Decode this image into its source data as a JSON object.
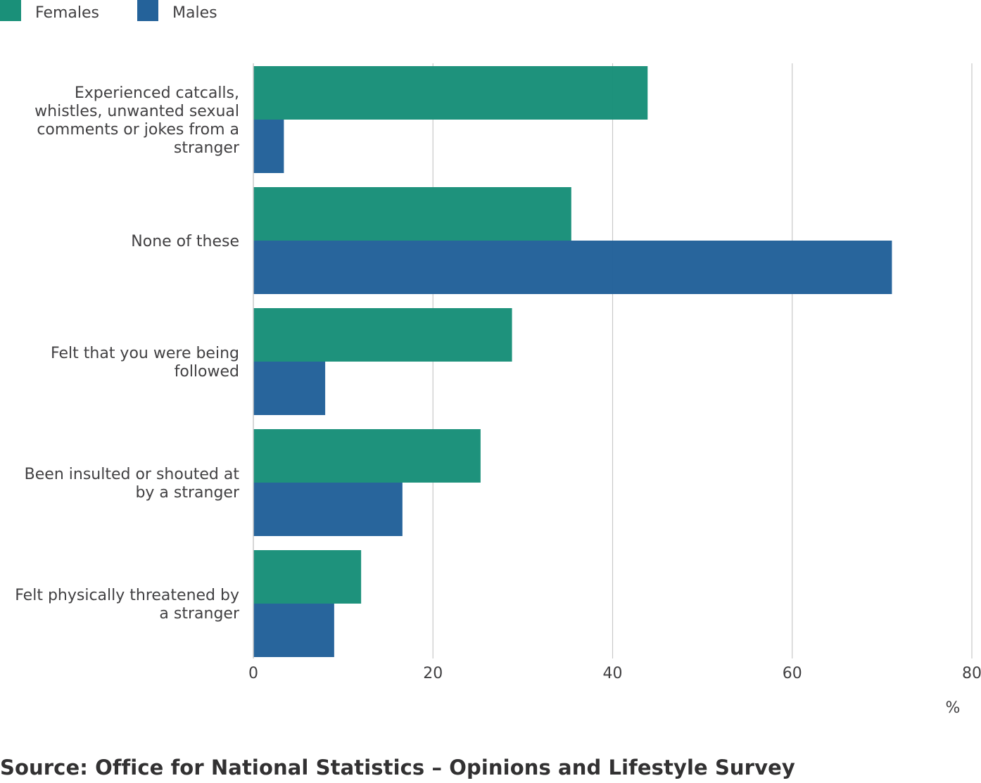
{
  "legend": {
    "females_label": "Females",
    "males_label": "Males"
  },
  "colors": {
    "females": "#1a9079",
    "males": "#24629a",
    "grid": "#c8c8c8",
    "axis": "#c8c8c8"
  },
  "chart_data": {
    "type": "bar",
    "orientation": "horizontal",
    "categories": [
      "Experienced catcalls, whistles, unwanted sexual comments or jokes from a stranger",
      "None of these",
      "Felt that you were being followed",
      "Been insulted or shouted at by a stranger",
      "Felt physically threatened by a stranger"
    ],
    "category_lines": [
      [
        "Experienced catcalls,",
        "whistles, unwanted sexual",
        "comments or jokes from a",
        "stranger"
      ],
      [
        "None of these"
      ],
      [
        "Felt that you were being",
        "followed"
      ],
      [
        "Been insulted or shouted at",
        "by a stranger"
      ],
      [
        "Felt physically threatened by",
        "a stranger"
      ]
    ],
    "series": [
      {
        "name": "Females",
        "values": [
          43.9,
          35.4,
          28.8,
          25.3,
          12.0
        ]
      },
      {
        "name": "Males",
        "values": [
          3.4,
          71.1,
          8.0,
          16.6,
          9.0
        ]
      }
    ],
    "xlim": [
      0,
      80
    ],
    "xticks": [
      0,
      20,
      40,
      60,
      80
    ],
    "xticklabels": [
      "0",
      "20",
      "40",
      "60",
      "80"
    ],
    "xlabel": "%",
    "grid": true,
    "legend_position": "top-left"
  },
  "source": "Source: Office for National Statistics – Opinions and Lifestyle Survey"
}
